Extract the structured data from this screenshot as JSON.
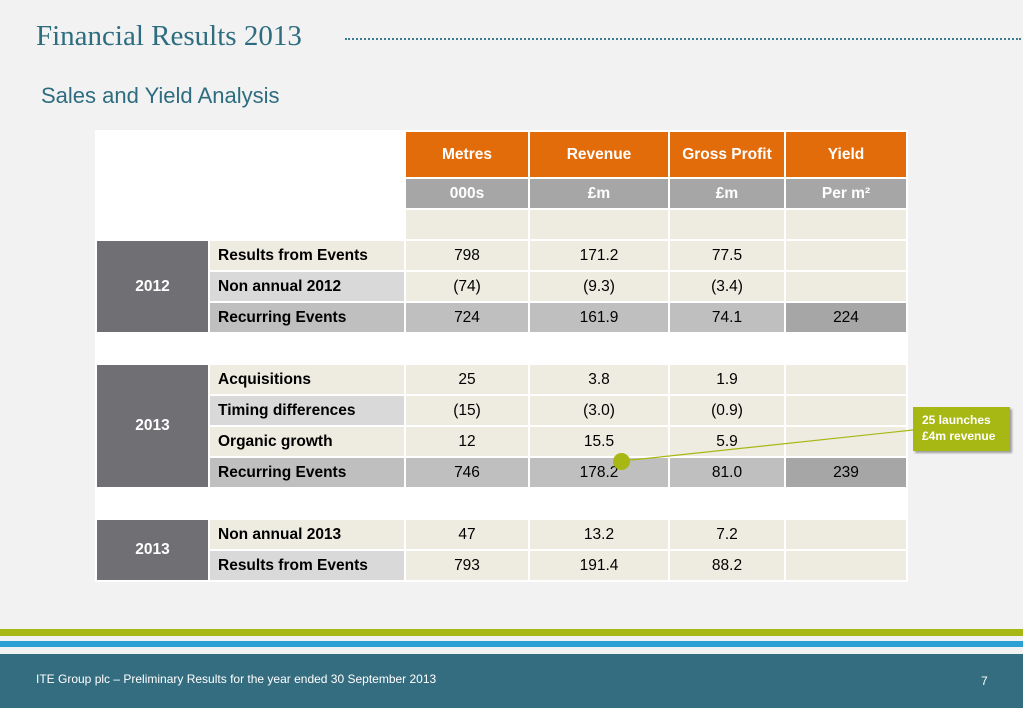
{
  "header": {
    "title": "Financial Results 2013",
    "subtitle": "Sales and Yield Analysis"
  },
  "table": {
    "columns": [
      {
        "label": "Metres",
        "unit": "000s"
      },
      {
        "label": "Revenue",
        "unit": "£m"
      },
      {
        "label": "Gross Profit",
        "unit": "£m"
      },
      {
        "label": "Yield",
        "unit": "Per m²"
      }
    ],
    "groups": [
      {
        "year": "2012",
        "rows": [
          {
            "label": "Results from Events",
            "values": [
              "798",
              "171.2",
              "77.5",
              ""
            ]
          },
          {
            "label": "Non annual 2012",
            "values": [
              "(74)",
              "(9.3)",
              "(3.4)",
              ""
            ]
          },
          {
            "label": "Recurring Events",
            "values": [
              "724",
              "161.9",
              "74.1",
              "224"
            ]
          }
        ]
      },
      {
        "year": "2013",
        "rows": [
          {
            "label": "Acquisitions",
            "values": [
              "25",
              "3.8",
              "1.9",
              ""
            ]
          },
          {
            "label": "Timing differences",
            "values": [
              "(15)",
              "(3.0)",
              "(0.9)",
              ""
            ]
          },
          {
            "label": "Organic growth",
            "values": [
              "12",
              "15.5",
              "5.9",
              ""
            ]
          },
          {
            "label": "Recurring Events",
            "values": [
              "746",
              "178.2",
              "81.0",
              "239"
            ]
          }
        ]
      },
      {
        "year": "2013",
        "rows": [
          {
            "label": "Non annual 2013",
            "values": [
              "47",
              "13.2",
              "7.2",
              ""
            ]
          },
          {
            "label": "Results from Events",
            "values": [
              "793",
              "191.4",
              "88.2",
              ""
            ]
          }
        ]
      }
    ]
  },
  "callout": {
    "line1": "25 launches",
    "line2": "£4m revenue"
  },
  "footer": {
    "text": "ITE Group plc – Preliminary Results for the year ended 30 September 2013",
    "page": "7"
  },
  "colors": {
    "accent_orange": "#e36c0a",
    "accent_green": "#a7b814",
    "brand_teal": "#356d80",
    "brand_blue": "#2aa1d2"
  }
}
